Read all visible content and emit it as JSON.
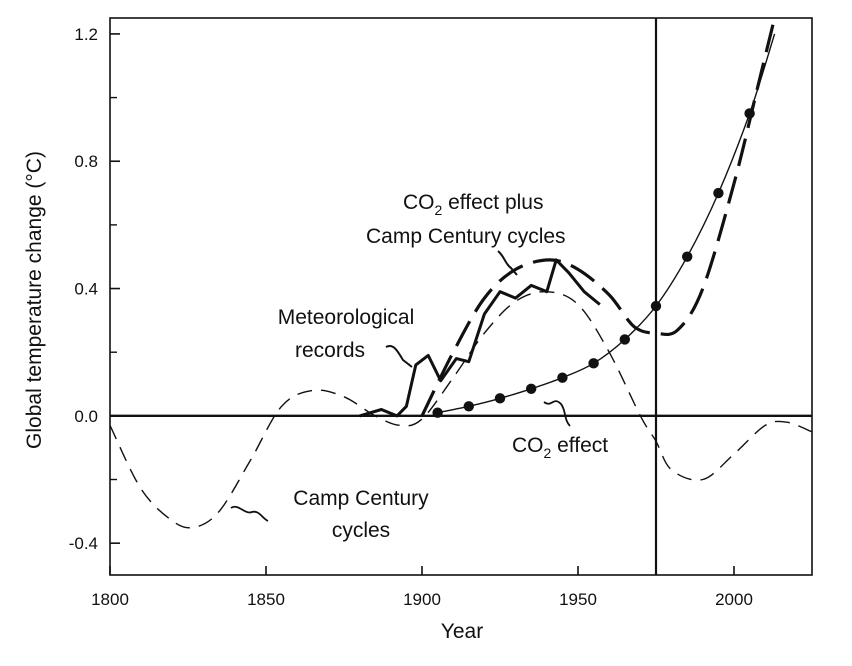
{
  "chart_data": {
    "type": "line",
    "title": "",
    "xlabel": "Year",
    "ylabel": "Global temperature change (°C)",
    "xlim": [
      1800,
      2025
    ],
    "ylim": [
      -0.5,
      1.25
    ],
    "xticks": [
      1800,
      1850,
      1900,
      1950,
      2000
    ],
    "xtick_labels": [
      "1800",
      "1850",
      "1900",
      "1950",
      "2000"
    ],
    "yticks": [
      -0.4,
      0.0,
      0.4,
      0.8,
      1.2
    ],
    "ytick_labels": [
      "-0.4",
      "0.0",
      "0.4",
      "0.8",
      "1.2"
    ],
    "yticks_minor": [
      -0.2,
      0.2,
      0.6,
      1.0
    ],
    "reference_lines": {
      "zero_line_y": 0.0,
      "vertical_line_x": 1975
    },
    "grid": false,
    "series": [
      {
        "name": "Camp Century cycles",
        "style": "thin-dashed",
        "x": [
          1800,
          1810,
          1820,
          1827,
          1835,
          1845,
          1855,
          1865,
          1875,
          1885,
          1893,
          1900,
          1910,
          1920,
          1930,
          1940,
          1950,
          1960,
          1970,
          1975,
          1980,
          1990,
          2000,
          2010,
          2017,
          2025
        ],
        "y": [
          -0.03,
          -0.23,
          -0.33,
          -0.35,
          -0.3,
          -0.14,
          0.03,
          0.08,
          0.06,
          0.0,
          -0.03,
          -0.01,
          0.12,
          0.26,
          0.36,
          0.39,
          0.35,
          0.2,
          0.0,
          -0.08,
          -0.17,
          -0.2,
          -0.12,
          -0.03,
          -0.02,
          -0.05
        ]
      },
      {
        "name": "CO2 effect",
        "style": "thin-solid-dots",
        "x": [
          1905,
          1915,
          1925,
          1935,
          1945,
          1955,
          1965,
          1975,
          1985,
          1995,
          2005,
          2013
        ],
        "y": [
          0.01,
          0.03,
          0.055,
          0.085,
          0.12,
          0.165,
          0.24,
          0.345,
          0.5,
          0.7,
          0.95,
          1.2
        ]
      },
      {
        "name": "CO2 effect plus Camp Century cycles",
        "style": "thick-dashed",
        "x": [
          1900,
          1910,
          1920,
          1930,
          1941,
          1950,
          1960,
          1968,
          1975,
          1982,
          1990,
          2000,
          2008,
          2013
        ],
        "y": [
          0.0,
          0.2,
          0.37,
          0.46,
          0.49,
          0.46,
          0.38,
          0.28,
          0.26,
          0.27,
          0.4,
          0.73,
          1.05,
          1.25
        ]
      },
      {
        "name": "Meteorological records",
        "style": "thick-solid",
        "x": [
          1880,
          1887,
          1892,
          1895,
          1898,
          1902,
          1906,
          1911,
          1915,
          1920,
          1925,
          1930,
          1935,
          1940,
          1943,
          1947,
          1952,
          1957
        ],
        "y": [
          0.0,
          0.02,
          0.0,
          0.03,
          0.16,
          0.19,
          0.11,
          0.18,
          0.17,
          0.32,
          0.39,
          0.37,
          0.41,
          0.39,
          0.49,
          0.45,
          0.39,
          0.35
        ]
      }
    ],
    "annotations": [
      {
        "text": "Meteorological records",
        "lines": [
          "Meteorological",
          "records"
        ]
      },
      {
        "text": "CO2 effect plus Camp Century cycles",
        "lines": [
          "CO2 effect plus",
          "Camp Century cycles"
        ]
      },
      {
        "text": "CO2 effect",
        "lines": [
          "CO2 effect"
        ]
      },
      {
        "text": "Camp Century cycles",
        "lines": [
          "Camp Century",
          "cycles"
        ]
      }
    ]
  }
}
